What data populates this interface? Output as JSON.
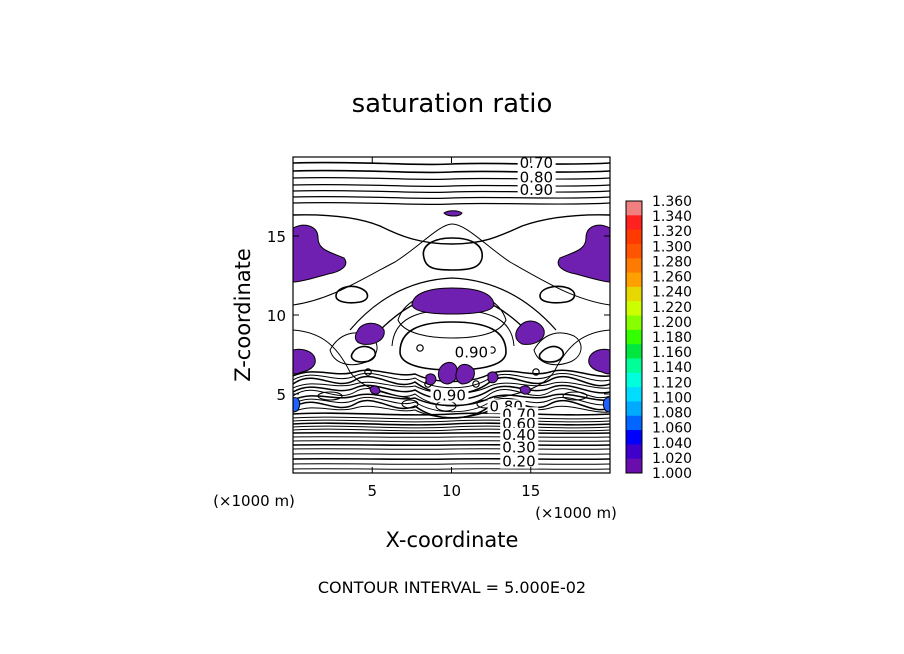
{
  "chart_data": {
    "type": "contour",
    "title": "saturation ratio",
    "xlabel": "X-coordinate",
    "ylabel": "Z-coordinate",
    "x_unit_label": "(×1000 m)",
    "z_unit_label": "(×1000 m)",
    "xlim": [
      0,
      20
    ],
    "ylim": [
      0,
      20
    ],
    "x_ticks": [
      5,
      10,
      15
    ],
    "y_ticks": [
      5,
      10,
      15
    ],
    "footer": "CONTOUR INTERVAL = 5.000E-02",
    "contour_interval": 0.05,
    "contour_labels": [
      {
        "text": "0.70",
        "x": 14.3,
        "z": 19.3
      },
      {
        "text": "0.80",
        "x": 14.3,
        "z": 18.4
      },
      {
        "text": "0.90",
        "x": 14.3,
        "z": 17.6
      },
      {
        "text": "0.90",
        "x": 10.2,
        "z": 7.3
      },
      {
        "text": "0.90",
        "x": 8.8,
        "z": 4.6
      },
      {
        "text": "0.80",
        "x": 12.4,
        "z": 3.9
      },
      {
        "text": "0.70",
        "x": 13.2,
        "z": 3.4
      },
      {
        "text": "0.60",
        "x": 13.2,
        "z": 2.8
      },
      {
        "text": "0.40",
        "x": 13.2,
        "z": 2.1
      },
      {
        "text": "0.30",
        "x": 13.2,
        "z": 1.3
      },
      {
        "text": "0.20",
        "x": 13.2,
        "z": 0.4
      }
    ],
    "colorbar": {
      "values": [
        1.36,
        1.34,
        1.32,
        1.3,
        1.28,
        1.26,
        1.24,
        1.22,
        1.2,
        1.18,
        1.16,
        1.14,
        1.12,
        1.1,
        1.08,
        1.06,
        1.04,
        1.02,
        1.0
      ],
      "labels": [
        "1.360",
        "1.340",
        "1.320",
        "1.300",
        "1.280",
        "1.260",
        "1.240",
        "1.220",
        "1.200",
        "1.180",
        "1.160",
        "1.140",
        "1.120",
        "1.100",
        "1.080",
        "1.060",
        "1.040",
        "1.020",
        "1.000"
      ],
      "colors": [
        "#f08080",
        "#ff2020",
        "#ff3a00",
        "#ff5500",
        "#ff7a00",
        "#ffa000",
        "#e6d800",
        "#ccff00",
        "#88ff00",
        "#33ff00",
        "#00e840",
        "#00ff99",
        "#00ffdd",
        "#00ddff",
        "#00aaff",
        "#0066ff",
        "#0000ff",
        "#4000cc",
        "#6a0dad"
      ]
    },
    "supersaturated_color": "#7020b0"
  }
}
